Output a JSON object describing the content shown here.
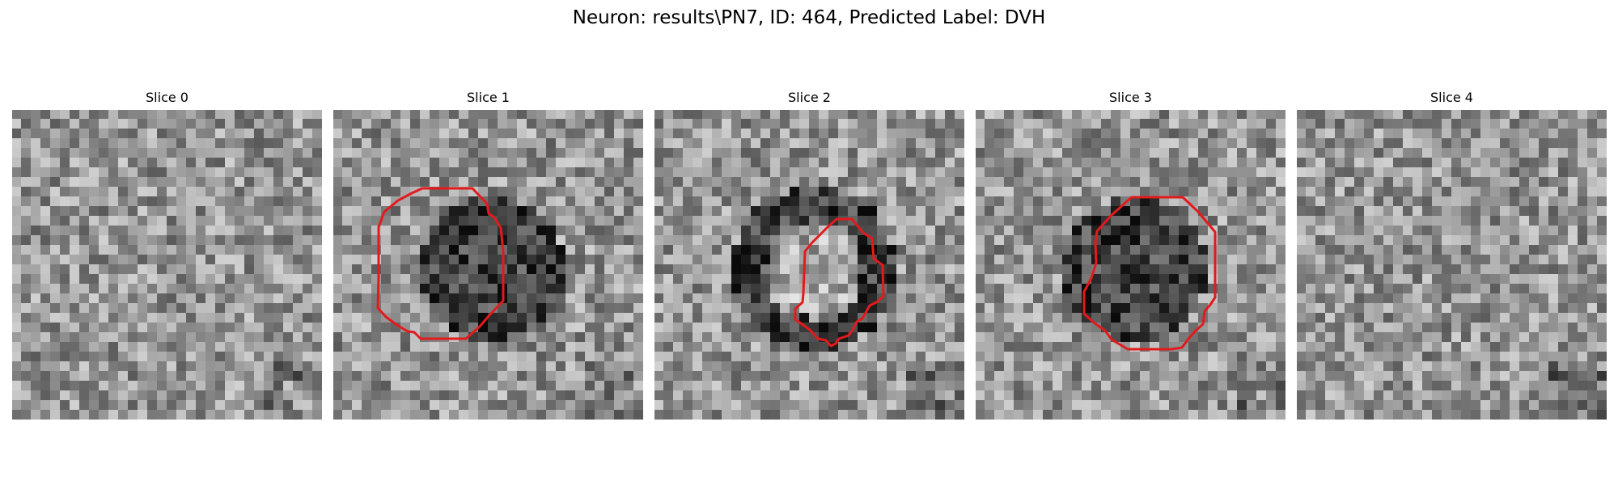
{
  "figure": {
    "title": "Neuron: results\\PN7, ID: 464, Predicted Label: DVH"
  },
  "panels": [
    {
      "title": "Slice 0",
      "has_contour": false,
      "texture_seed": 11,
      "dark_ring": false,
      "dark_blob": false
    },
    {
      "title": "Slice 1",
      "has_contour": true,
      "texture_seed": 23,
      "dark_ring": false,
      "dark_blob": true
    },
    {
      "title": "Slice 2",
      "has_contour": true,
      "texture_seed": 37,
      "dark_ring": true,
      "dark_blob": false
    },
    {
      "title": "Slice 3",
      "has_contour": true,
      "texture_seed": 41,
      "dark_ring": false,
      "dark_blob": true
    },
    {
      "title": "Slice 4",
      "has_contour": false,
      "texture_seed": 53,
      "dark_ring": false,
      "dark_blob": false
    }
  ],
  "colors": {
    "contour": "#e31a1c",
    "background": "#ffffff"
  }
}
